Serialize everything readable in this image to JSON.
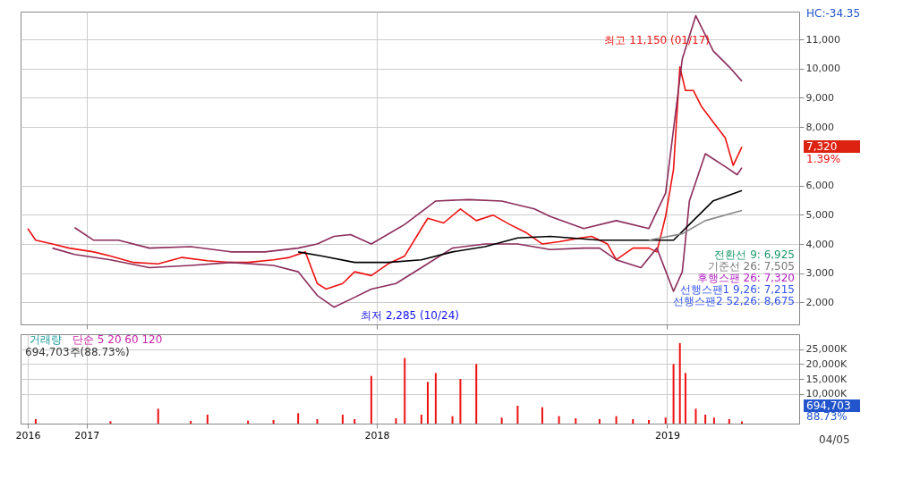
{
  "chart_data": [
    {
      "type": "line",
      "xlim": [
        "2016-10-10",
        "2019-06-16"
      ],
      "ylim": [
        1250,
        11950
      ],
      "yticks": [
        {
          "value": 2000,
          "label": "2,000"
        },
        {
          "value": 3000,
          "label": "3,000"
        },
        {
          "value": 4000,
          "label": "4,000"
        },
        {
          "value": 5000,
          "label": "5,000"
        },
        {
          "value": 6000,
          "label": "6,000"
        },
        {
          "value": 8000,
          "label": "8,000"
        },
        {
          "value": 9000,
          "label": "9,000"
        },
        {
          "value": 10000,
          "label": "10,000"
        },
        {
          "value": 11000,
          "label": "11,000"
        }
      ],
      "xticks": [
        {
          "value": "2017-01-01",
          "label": null
        },
        {
          "value": "2018-01-01",
          "label": null
        },
        {
          "value": "2019-01-01",
          "label": null
        }
      ],
      "tick_labels": "y",
      "grid": true,
      "line_style": "solid",
      "marker": "none",
      "series": [
        {
          "color": "#ee1111",
          "x": [
            "2016-10-19",
            "2016-10-29",
            "2016-11-19",
            "2016-12-10",
            "2017-01-10",
            "2017-01-31",
            "2017-03-01",
            "2017-04-01",
            "2017-05-01",
            "2017-06-02",
            "2017-07-02",
            "2017-07-23",
            "2017-08-24",
            "2017-09-13",
            "2017-10-03",
            "2017-10-18",
            "2017-10-29",
            "2017-11-19",
            "2017-12-04",
            "2017-12-25",
            "2018-01-15",
            "2018-02-05",
            "2018-02-26",
            "2018-03-06",
            "2018-03-26",
            "2018-04-16",
            "2018-05-06",
            "2018-05-27",
            "2018-06-17",
            "2018-07-07",
            "2018-07-28",
            "2018-08-18",
            "2018-09-08",
            "2018-09-28",
            "2018-10-18",
            "2018-10-29",
            "2018-11-19",
            "2018-12-09",
            "2018-12-19",
            "2018-12-30",
            "2019-01-09",
            "2019-01-17",
            "2019-01-24",
            "2019-02-03",
            "2019-02-13",
            "2019-02-28",
            "2019-03-15",
            "2019-03-25",
            "2019-04-05"
          ],
          "values": [
            4530,
            4130,
            4000,
            3860,
            3730,
            3590,
            3370,
            3320,
            3540,
            3430,
            3370,
            3370,
            3460,
            3540,
            3730,
            2650,
            2460,
            2650,
            3050,
            2920,
            3320,
            3590,
            4530,
            4880,
            4720,
            5200,
            4800,
            4990,
            4670,
            4400,
            4000,
            4080,
            4180,
            4260,
            4000,
            3460,
            3860,
            3860,
            3730,
            4940,
            6560,
            10060,
            9250,
            9250,
            8710,
            8170,
            7630,
            6690,
            7320
          ]
        },
        {
          "color": "#8b2c5a",
          "x": [
            "2016-12-17",
            "2017-01-10",
            "2017-02-10",
            "2017-03-21",
            "2017-05-12",
            "2017-07-02",
            "2017-08-13",
            "2017-09-24",
            "2017-10-18",
            "2017-11-08",
            "2017-11-29",
            "2017-12-25",
            "2018-02-05",
            "2018-03-16",
            "2018-04-26",
            "2018-06-07",
            "2018-07-18",
            "2018-08-07",
            "2018-09-18",
            "2018-10-29",
            "2018-12-09",
            "2018-12-30",
            "2019-01-20",
            "2019-02-06",
            "2019-02-28",
            "2019-03-20",
            "2019-04-05"
          ],
          "values": [
            4560,
            4130,
            4130,
            3860,
            3910,
            3730,
            3730,
            3860,
            4000,
            4260,
            4320,
            4000,
            4670,
            5470,
            5520,
            5470,
            5200,
            4940,
            4530,
            4800,
            4530,
            5740,
            10330,
            11810,
            10600,
            10060,
            9570
          ]
        },
        {
          "color": "#8b2c5a",
          "x": [
            "2016-11-19",
            "2016-12-17",
            "2017-01-31",
            "2017-03-21",
            "2017-05-12",
            "2017-07-02",
            "2017-08-24",
            "2017-09-24",
            "2017-10-18",
            "2017-11-08",
            "2017-11-29",
            "2017-12-25",
            "2018-01-25",
            "2018-02-26",
            "2018-04-06",
            "2018-05-17",
            "2018-06-27",
            "2018-08-07",
            "2018-09-18",
            "2018-10-08",
            "2018-10-29",
            "2018-11-29",
            "2018-12-19",
            "2019-01-09",
            "2019-01-20",
            "2019-01-29",
            "2019-02-18",
            "2019-03-20",
            "2019-03-30",
            "2019-04-05"
          ],
          "values": [
            3860,
            3640,
            3460,
            3190,
            3270,
            3370,
            3270,
            3050,
            2240,
            1840,
            2110,
            2460,
            2650,
            3190,
            3860,
            4000,
            4000,
            3810,
            3860,
            3860,
            3460,
            3190,
            3860,
            2380,
            3050,
            5480,
            7090,
            6560,
            6370,
            6610
          ]
        },
        {
          "color": "#000000",
          "x": [
            "2017-09-24",
            "2017-10-24",
            "2017-12-04",
            "2018-01-15",
            "2018-02-26",
            "2018-04-06",
            "2018-05-17",
            "2018-06-27",
            "2018-08-07",
            "2018-10-08",
            "2018-12-09",
            "2019-01-09",
            "2019-01-29",
            "2019-02-28",
            "2019-04-05"
          ],
          "values": [
            3730,
            3590,
            3370,
            3370,
            3460,
            3730,
            3910,
            4210,
            4260,
            4130,
            4130,
            4130,
            4670,
            5480,
            5830
          ]
        },
        {
          "color": "#888888",
          "x": [
            "2018-12-09",
            "2019-01-20",
            "2019-02-18",
            "2019-04-05"
          ],
          "values": [
            4130,
            4350,
            4800,
            5150
          ]
        }
      ],
      "annotations": [
        "최고 11,150 (01/17)",
        "최저 2,285 (10/24)",
        "전환선 9: 6,925",
        "기준선 26: 7,505",
        "후행스팬 26: 7,320",
        "선행스팬1 9,26: 7,215",
        "선행스팬2 52,26: 8,675",
        "7,320",
        "1.39%",
        "HC:-34.35"
      ]
    },
    {
      "type": "bar",
      "xlim": [
        "2016-10-10",
        "2019-06-16"
      ],
      "ylim": [
        0,
        30000
      ],
      "yticks": [
        {
          "value": 10000,
          "label": "10,000K"
        },
        {
          "value": 15000,
          "label": "15,000K"
        },
        {
          "value": 20000,
          "label": "20,000K"
        },
        {
          "value": 25000,
          "label": "25,000K"
        }
      ],
      "xticks": [
        {
          "value": "2016-10-19",
          "label": "2016"
        },
        {
          "value": "2017-01-01",
          "label": "2017"
        },
        {
          "value": "2018-01-01",
          "label": "2018"
        },
        {
          "value": "2019-01-01",
          "label": "2019"
        }
      ],
      "grid": true,
      "series": [
        {
          "color": "#ee1111",
          "x": [
            "2016-10-29",
            "2017-01-31",
            "2017-04-01",
            "2017-05-12",
            "2017-06-02",
            "2017-07-23",
            "2017-08-24",
            "2017-09-24",
            "2017-10-18",
            "2017-11-19",
            "2017-12-04",
            "2017-12-25",
            "2018-01-25",
            "2018-02-05",
            "2018-02-26",
            "2018-03-06",
            "2018-03-16",
            "2018-04-06",
            "2018-04-16",
            "2018-05-06",
            "2018-06-07",
            "2018-06-27",
            "2018-07-28",
            "2018-08-18",
            "2018-09-08",
            "2018-10-08",
            "2018-10-29",
            "2018-11-19",
            "2018-12-09",
            "2018-12-30",
            "2019-01-09",
            "2019-01-17",
            "2019-01-24",
            "2019-02-06",
            "2019-02-18",
            "2019-03-01",
            "2019-03-20",
            "2019-04-05"
          ],
          "values": [
            1500,
            800,
            5000,
            900,
            3000,
            1000,
            1200,
            3500,
            1500,
            3000,
            1500,
            16000,
            1800,
            22000,
            3000,
            14000,
            17000,
            2500,
            15000,
            20000,
            2000,
            6000,
            5500,
            2500,
            1800,
            1500,
            2500,
            1500,
            1200,
            2000,
            20000,
            27000,
            17000,
            5000,
            3000,
            2000,
            1500,
            700
          ]
        }
      ],
      "annotations": [
        "거래량",
        "단순 5 20 60 120",
        "694,703주(88.73%)",
        "694,703",
        "88.73%",
        "04/05"
      ]
    }
  ]
}
